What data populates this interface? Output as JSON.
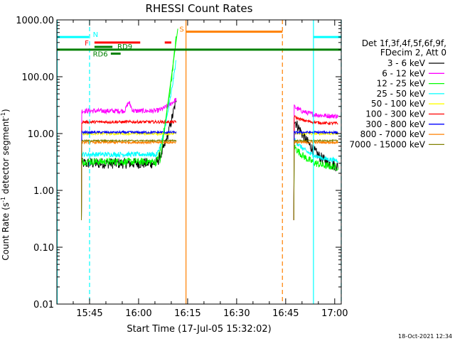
{
  "chart_data": {
    "type": "line",
    "title": "RHESSI Count Rates",
    "xlabel": "Start Time (17-Jul-05 15:32:02)",
    "ylabel_main": "Count Rate (s",
    "ylabel_sup1": "-1",
    "ylabel_mid": " detector segment",
    "ylabel_sup2": "-1",
    "ylabel_end": ")",
    "footer": "18-Oct-2021 12:34",
    "x_range_minutes": [
      15.0,
      102.0
    ],
    "y_scale": "log",
    "ylim": [
      0.01,
      1000
    ],
    "y_ticks": [
      {
        "value": 1000,
        "label": "1000.00"
      },
      {
        "value": 100,
        "label": "100.00"
      },
      {
        "value": 10,
        "label": "10.00"
      },
      {
        "value": 1,
        "label": "1.00"
      },
      {
        "value": 0.1,
        "label": "0.10"
      },
      {
        "value": 0.01,
        "label": "0.01"
      }
    ],
    "x_ticks": [
      {
        "value": 25,
        "label": "15:45"
      },
      {
        "value": 40,
        "label": "16:00"
      },
      {
        "value": 55,
        "label": "16:15"
      },
      {
        "value": 70,
        "label": "16:30"
      },
      {
        "value": 85,
        "label": "16:45"
      },
      {
        "value": 100,
        "label": "17:00"
      }
    ],
    "legend": {
      "header1": "Det 1f,3f,4f,5f,6f,9f,",
      "header2": "FDecim 2, Att 0",
      "position": "right"
    },
    "series": [
      {
        "name": "3 - 6 keV",
        "color": "#000000"
      },
      {
        "name": "6 - 12 keV",
        "color": "#ff00ff"
      },
      {
        "name": "12 - 25 keV",
        "color": "#00ff00"
      },
      {
        "name": "25 - 50 keV",
        "color": "#00ffff"
      },
      {
        "name": "50 - 100 keV",
        "color": "#ffff00"
      },
      {
        "name": "100 - 300 keV",
        "color": "#ff0000"
      },
      {
        "name": "300 - 800 keV",
        "color": "#0000ff"
      },
      {
        "name": "800 - 7000 keV",
        "color": "#ff8000"
      },
      {
        "name": "7000 - 15000 keV",
        "color": "#808000"
      }
    ],
    "segments": [
      {
        "name": "3 - 6 keV",
        "color": "#000000",
        "x0": 22.5,
        "x1": 51.5,
        "base": 3.0,
        "noise": 0.22,
        "bumps": [
          [
            28.0,
            1.6
          ],
          [
            31.0,
            1.2
          ],
          [
            40.5,
            2.5
          ]
        ],
        "rise": [
          [
            45.0,
            51.5,
            3.0,
            40
          ]
        ]
      },
      {
        "name": "3 - 6 keV",
        "color": "#000000",
        "x0": 87.5,
        "x1": 101.0,
        "base": 2.5,
        "noise": 0.22,
        "start": 18,
        "decay_to": 2.3
      },
      {
        "name": "6 - 12 keV",
        "color": "#ff00ff",
        "x0": 22.5,
        "x1": 51.5,
        "base": 25,
        "noise": 0.1,
        "bumps": [
          [
            37.0,
            35
          ],
          [
            41.0,
            20
          ]
        ],
        "rise": [
          [
            45.0,
            51.5,
            25,
            40
          ]
        ]
      },
      {
        "name": "6 - 12 keV",
        "color": "#ff00ff",
        "x0": 87.5,
        "x1": 101.0,
        "base": 22,
        "noise": 0.1,
        "start": 30,
        "decay_to": 20
      },
      {
        "name": "12 - 25 keV",
        "color": "#00ff00",
        "x0": 22.5,
        "x1": 51.5,
        "base": 3.2,
        "noise": 0.15,
        "rise": [
          [
            45.0,
            51.5,
            3.0,
            500
          ]
        ]
      },
      {
        "name": "12 - 25 keV",
        "color": "#00ff00",
        "x0": 87.5,
        "x1": 101.0,
        "base": 3.0,
        "noise": 0.15,
        "start": 6,
        "decay_to": 2.5
      },
      {
        "name": "25 - 50 keV",
        "color": "#00ffff",
        "x0": 22.5,
        "x1": 51.5,
        "base": 4.3,
        "noise": 0.1,
        "rise": [
          [
            45.0,
            51.5,
            4.0,
            200
          ]
        ]
      },
      {
        "name": "25 - 50 keV",
        "color": "#00ffff",
        "x0": 87.5,
        "x1": 101.0,
        "base": 4.0,
        "noise": 0.1,
        "start": 8,
        "decay_to": 3.3
      },
      {
        "name": "50 - 100 keV",
        "color": "#ffff00",
        "x0": 22.5,
        "x1": 51.5,
        "base": 10,
        "noise": 0.06
      },
      {
        "name": "50 - 100 keV",
        "color": "#ffff00",
        "x0": 87.5,
        "x1": 101.0,
        "base": 10,
        "noise": 0.06
      },
      {
        "name": "100 - 300 keV",
        "color": "#ff0000",
        "x0": 22.5,
        "x1": 51.5,
        "base": 16,
        "noise": 0.06
      },
      {
        "name": "100 - 300 keV",
        "color": "#ff0000",
        "x0": 87.5,
        "x1": 101.0,
        "base": 16,
        "noise": 0.06,
        "start": 20,
        "decay_to": 15
      },
      {
        "name": "300 - 800 keV",
        "color": "#0000ff",
        "x0": 22.5,
        "x1": 51.5,
        "base": 10.5,
        "noise": 0.05
      },
      {
        "name": "300 - 800 keV",
        "color": "#0000ff",
        "x0": 87.5,
        "x1": 101.0,
        "base": 10.5,
        "noise": 0.05
      },
      {
        "name": "800 - 7000 keV",
        "color": "#ff8000",
        "x0": 22.5,
        "x1": 51.5,
        "base": 7,
        "noise": 0.05
      },
      {
        "name": "800 - 7000 keV",
        "color": "#ff8000",
        "x0": 87.5,
        "x1": 101.0,
        "base": 7,
        "noise": 0.05
      },
      {
        "name": "7000 - 15000 keV",
        "color": "#808000",
        "x0": 22.5,
        "x1": 51.5,
        "base": 7.5,
        "noise": 0.03
      },
      {
        "name": "7000 - 15000 keV",
        "color": "#808000",
        "x0": 87.5,
        "x1": 101.0,
        "base": 7.5,
        "noise": 0.03
      }
    ],
    "vlines": [
      {
        "x": 15.1,
        "color": "#00ffff",
        "style": "solid"
      },
      {
        "x": 25.0,
        "color": "#00ffff",
        "style": "dashed"
      },
      {
        "x": 54.5,
        "color": "#ff8000",
        "style": "solid"
      },
      {
        "x": 84.0,
        "color": "#ff8000",
        "style": "dashed"
      },
      {
        "x": 93.5,
        "color": "#00ffff",
        "style": "solid"
      },
      {
        "x": 102.0,
        "color": "#00ffff",
        "style": "dashed"
      }
    ],
    "flag_bars": [
      {
        "label": "N",
        "color": "#00ffff",
        "x0": 15.0,
        "x1": 24.8,
        "y": 500,
        "label_x": 26.0,
        "label_y": 560
      },
      {
        "label": "",
        "color": "#00ffff",
        "x0": 93.5,
        "x1": 102.0,
        "y": 500
      },
      {
        "label": "S",
        "color": "#ff8000",
        "x0": 54.6,
        "x1": 84.0,
        "y": 620,
        "label_x": 52.5,
        "label_y": 700
      },
      {
        "label": "F",
        "color": "#ff0000",
        "x0": 26.5,
        "x1": 40.5,
        "y": 400,
        "label_x": 23.5,
        "label_y": 400
      },
      {
        "label": "",
        "color": "#ff0000",
        "x0": 48.0,
        "x1": 50.0,
        "y": 400
      },
      {
        "label": "RD6",
        "color": "#008000",
        "x0": 31.5,
        "x1": 34.5,
        "y": 255,
        "label_x": 26.0,
        "label_y": 255
      },
      {
        "label": "RD9",
        "color": "#008000",
        "x0": 26.5,
        "x1": 32.0,
        "y": 335,
        "label_x": 33.5,
        "label_y": 345
      },
      {
        "label": "",
        "color": "#008000",
        "x0": 15.0,
        "x1": 102.0,
        "y": 300
      }
    ],
    "green_flare_spike": {
      "x0": 46.5,
      "x1": 52.0,
      "y0": 3,
      "y1": 700
    }
  }
}
